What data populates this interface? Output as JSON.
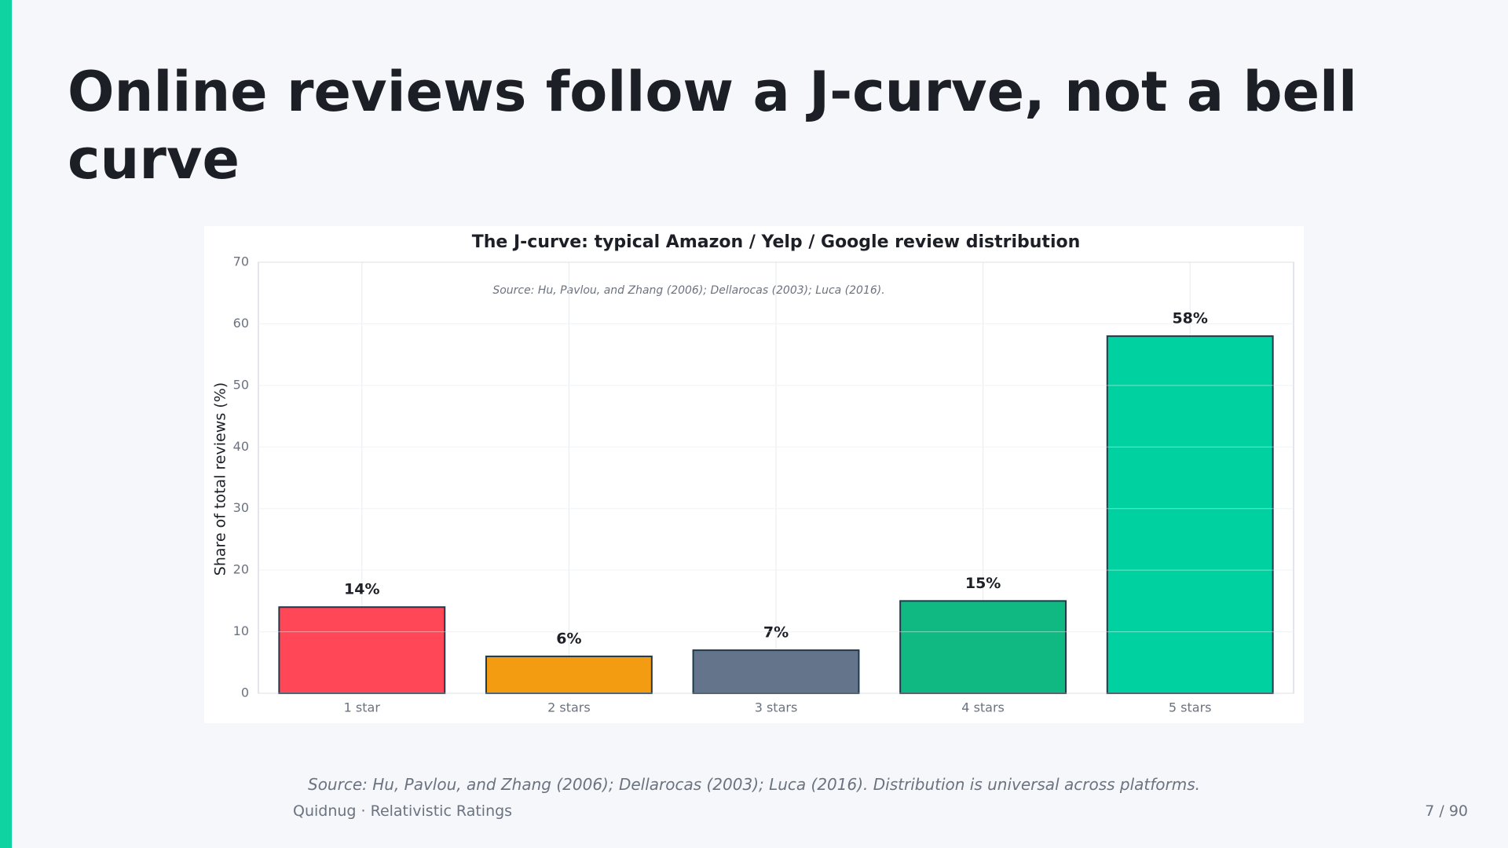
{
  "slide_title": "Online reviews follow a J-curve, not a bell curve",
  "chart_data": {
    "type": "bar",
    "title": "The J-curve: typical Amazon / Yelp / Google review distribution",
    "annotation": "Source: Hu, Pavlou, and Zhang (2006); Dellarocas (2003); Luca (2016).",
    "ylabel": "Share of total reviews (%)",
    "categories": [
      "1 star",
      "2 stars",
      "3 stars",
      "4 stars",
      "5 stars"
    ],
    "values": [
      14,
      6,
      7,
      15,
      58
    ],
    "value_labels": [
      "14%",
      "6%",
      "7%",
      "15%",
      "58%"
    ],
    "colors": [
      "#ff4757",
      "#f39c12",
      "#64748b",
      "#10b981",
      "#00d1a0"
    ],
    "ylim": [
      0,
      70
    ],
    "yticks": [
      0,
      10,
      20,
      30,
      40,
      50,
      60,
      70
    ],
    "grid": true
  },
  "footer": {
    "source": "Source: Hu, Pavlou, and Zhang (2006); Dellarocas (2003); Luca (2016). Distribution is universal across platforms.",
    "brand": "Quidnug  ·  Relativistic Ratings",
    "page": "7 / 90"
  }
}
